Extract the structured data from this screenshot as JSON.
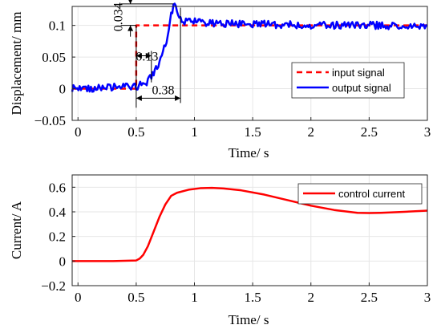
{
  "chart_data": [
    {
      "type": "line",
      "title": "",
      "xlabel": "Time/ s",
      "ylabel": "Displacement/ mm",
      "xlim": [
        -0.05,
        3
      ],
      "ylim": [
        -0.05,
        0.13
      ],
      "xticks": [
        0,
        0.5,
        1,
        1.5,
        2,
        2.5,
        3
      ],
      "xtick_labels": [
        "0",
        "0.5",
        "1",
        "1.5",
        "2",
        "2.5",
        "3"
      ],
      "yticks": [
        -0.05,
        0,
        0.05,
        0.1
      ],
      "ytick_labels": [
        "−0.05",
        "0",
        "0.05",
        "0.1"
      ],
      "grid": true,
      "legend_position": "middle-right",
      "series": [
        {
          "name": "input signal",
          "color": "#ff0000",
          "style": "dashed",
          "x": [
            -0.05,
            0.5,
            0.5,
            3
          ],
          "y": [
            0,
            0,
            0.1,
            0.1
          ]
        },
        {
          "name": "output signal",
          "color": "#0000ff",
          "style": "solid-noisy",
          "x": [
            -0.05,
            0.1,
            0.3,
            0.5,
            0.58,
            0.63,
            0.68,
            0.73,
            0.77,
            0.8,
            0.82,
            0.84,
            0.86,
            0.88,
            0.95,
            1.1,
            1.3,
            1.5,
            1.8,
            2.1,
            2.4,
            2.7,
            3.0
          ],
          "y": [
            0,
            0.001,
            0.002,
            0.003,
            0.008,
            0.02,
            0.035,
            0.055,
            0.085,
            0.115,
            0.13,
            0.129,
            0.118,
            0.108,
            0.106,
            0.104,
            0.103,
            0.102,
            0.101,
            0.1,
            0.1,
            0.1,
            0.099
          ]
        }
      ],
      "annotations": [
        {
          "text": "0.034",
          "kind": "vertical-dimension",
          "x": 0.45,
          "from": 0.1,
          "to": 0.134
        },
        {
          "text": "0.13",
          "kind": "horizontal-dimension",
          "y": 0.052,
          "from": 0.5,
          "to": 0.63
        },
        {
          "text": "0.38",
          "kind": "horizontal-dimension",
          "y": -0.015,
          "from": 0.5,
          "to": 0.88
        }
      ]
    },
    {
      "type": "line",
      "title": "",
      "xlabel": "Time/ s",
      "ylabel": "Current/ A",
      "xlim": [
        -0.05,
        3
      ],
      "ylim": [
        -0.2,
        0.7
      ],
      "xticks": [
        0,
        0.5,
        1,
        1.5,
        2,
        2.5,
        3
      ],
      "xtick_labels": [
        "0",
        "0.5",
        "1",
        "1.5",
        "2",
        "2.5",
        "3"
      ],
      "yticks": [
        -0.2,
        0,
        0.2,
        0.4,
        0.6
      ],
      "ytick_labels": [
        "−0.2",
        "0",
        "0.2",
        "0.4",
        "0.6"
      ],
      "grid": true,
      "legend_position": "top-right",
      "series": [
        {
          "name": "control current",
          "color": "#ff0000",
          "style": "solid",
          "x": [
            -0.05,
            0.3,
            0.5,
            0.53,
            0.56,
            0.6,
            0.65,
            0.7,
            0.75,
            0.8,
            0.85,
            0.95,
            1.05,
            1.15,
            1.25,
            1.4,
            1.6,
            1.8,
            2.0,
            2.2,
            2.4,
            2.5,
            2.6,
            2.8,
            3.0
          ],
          "y": [
            0,
            0,
            0.005,
            0.02,
            0.05,
            0.12,
            0.24,
            0.36,
            0.46,
            0.53,
            0.555,
            0.58,
            0.592,
            0.595,
            0.59,
            0.575,
            0.54,
            0.495,
            0.45,
            0.415,
            0.392,
            0.39,
            0.392,
            0.4,
            0.41
          ]
        }
      ]
    }
  ]
}
